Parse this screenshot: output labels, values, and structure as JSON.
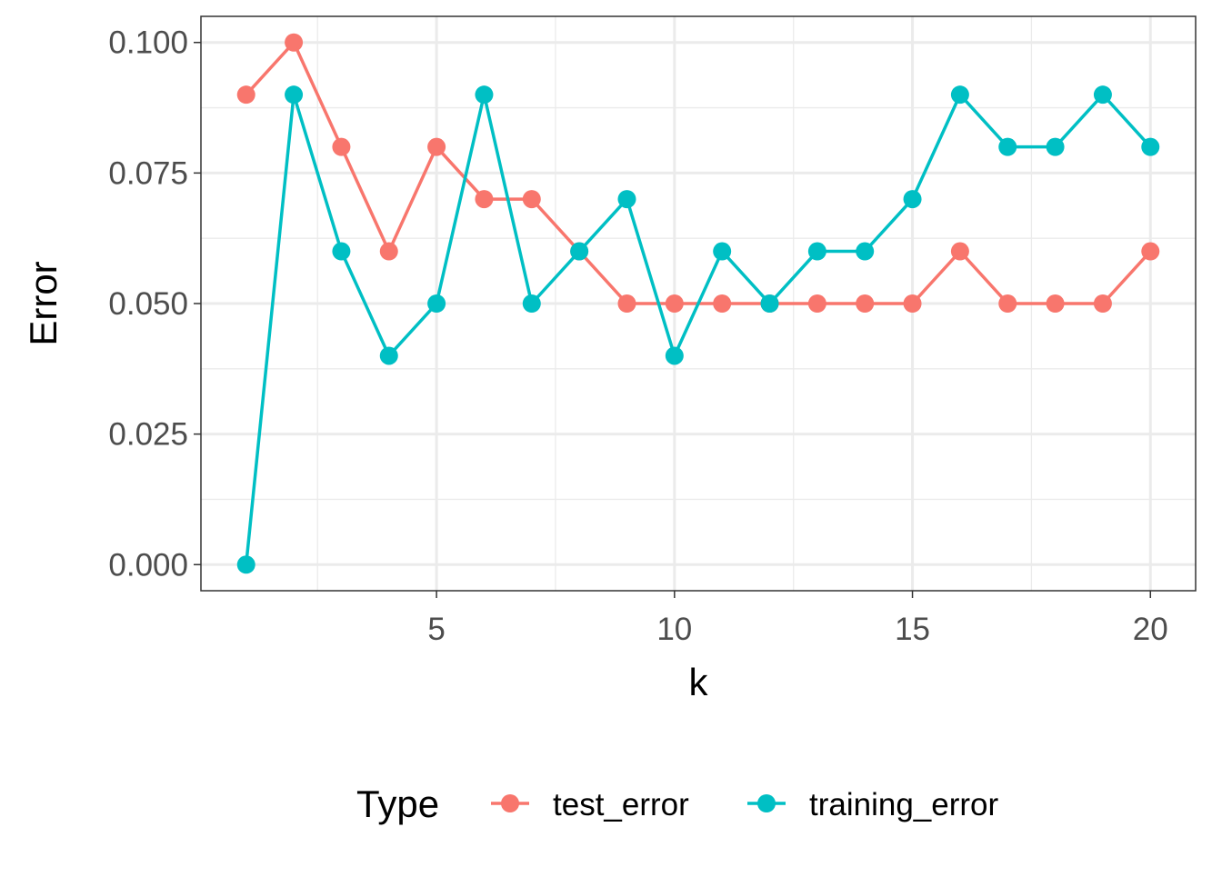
{
  "chart_data": {
    "type": "line",
    "title": "",
    "xlabel": "k",
    "ylabel": "Error",
    "xlim": [
      0.05,
      20.95
    ],
    "ylim": [
      -0.005,
      0.105
    ],
    "x_ticks": [
      5,
      10,
      15,
      20
    ],
    "x_tick_labels": [
      "5",
      "10",
      "15",
      "20"
    ],
    "y_ticks": [
      0,
      0.025,
      0.05,
      0.075,
      0.1
    ],
    "y_tick_labels": [
      "0.000",
      "0.025",
      "0.050",
      "0.075",
      "0.100"
    ],
    "x_minor": [
      2.5,
      7.5,
      12.5,
      17.5
    ],
    "y_minor": [
      0.0125,
      0.0375,
      0.0625,
      0.0875
    ],
    "grid": true,
    "legend_title": "Type",
    "legend_position": "bottom",
    "x": [
      1,
      2,
      3,
      4,
      5,
      6,
      7,
      8,
      9,
      10,
      11,
      12,
      13,
      14,
      15,
      16,
      17,
      18,
      19,
      20
    ],
    "series": [
      {
        "name": "test_error",
        "color": "#F8766D",
        "values": [
          0.09,
          0.1,
          0.08,
          0.06,
          0.08,
          0.07,
          0.07,
          0.06,
          0.05,
          0.05,
          0.05,
          0.05,
          0.05,
          0.05,
          0.05,
          0.06,
          0.05,
          0.05,
          0.05,
          0.06
        ]
      },
      {
        "name": "training_error",
        "color": "#00BFC4",
        "values": [
          0.0,
          0.09,
          0.06,
          0.04,
          0.05,
          0.09,
          0.05,
          0.06,
          0.07,
          0.04,
          0.06,
          0.05,
          0.06,
          0.06,
          0.07,
          0.09,
          0.08,
          0.08,
          0.09,
          0.08
        ]
      }
    ]
  }
}
